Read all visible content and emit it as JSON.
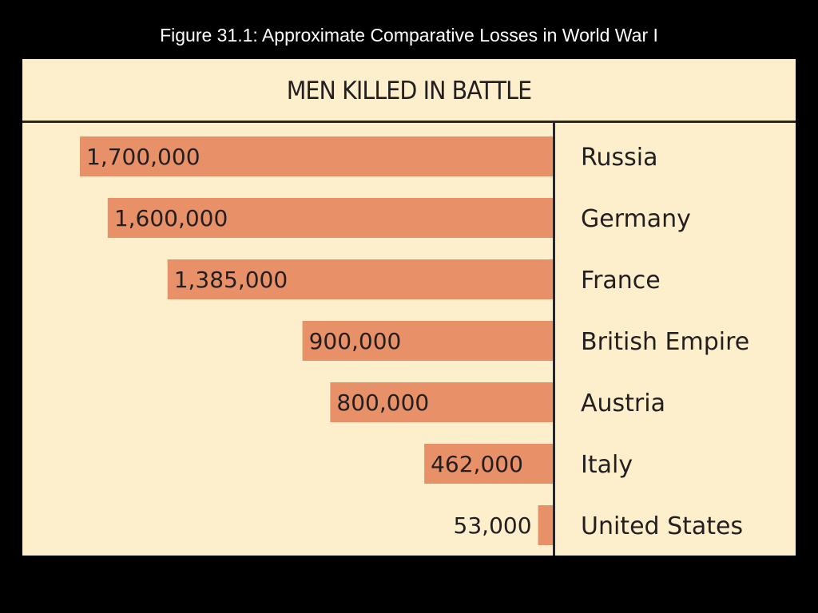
{
  "caption": "Figure 31.1: Approximate Comparative Losses in World War I",
  "colors": {
    "background": "#000000",
    "panel": "#fdefcc",
    "bar": "#e89068",
    "text": "#231f20",
    "caption": "#ffffff"
  },
  "chart_data": {
    "type": "bar",
    "orientation": "horizontal",
    "title": "MEN KILLED IN BATTLE",
    "grid": false,
    "legend": "none",
    "xlim": [
      0,
      1700000
    ],
    "categories": [
      "Russia",
      "Germany",
      "France",
      "British Empire",
      "Austria",
      "Italy",
      "United States"
    ],
    "values": [
      1700000,
      1600000,
      1385000,
      900000,
      800000,
      462000,
      53000
    ],
    "value_labels": [
      "1,700,000",
      "1,600,000",
      "1,385,000",
      "900,000",
      "800,000",
      "462,000",
      "53,000"
    ]
  }
}
